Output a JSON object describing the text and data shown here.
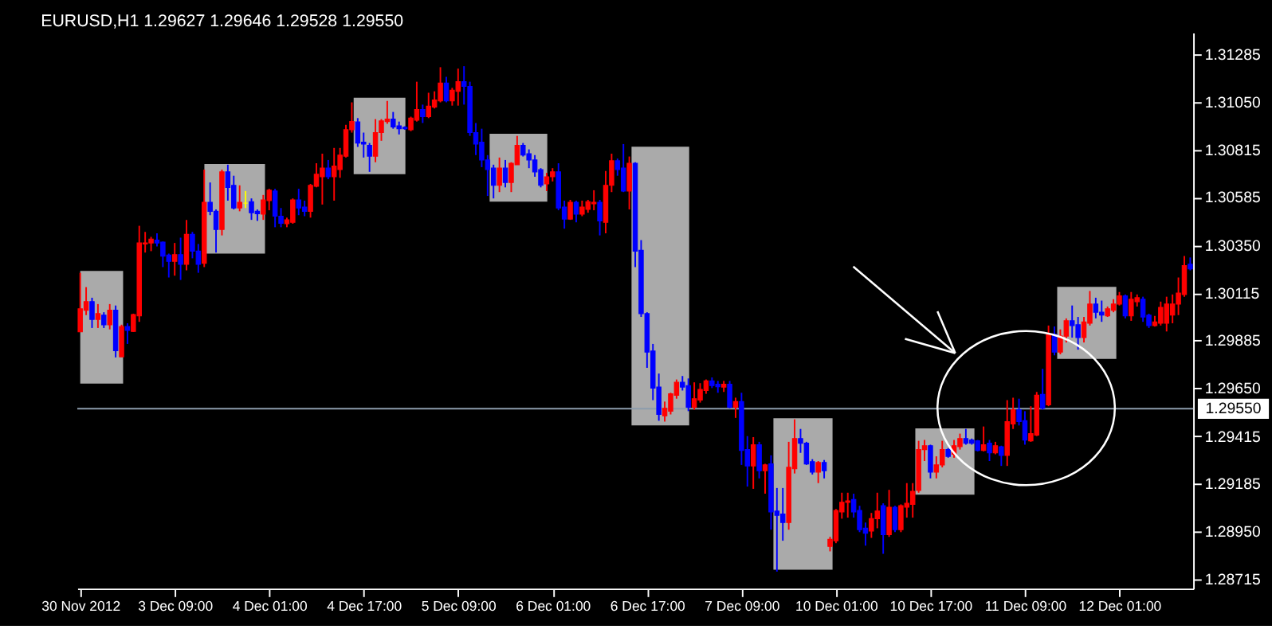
{
  "chart_data": {
    "type": "candlestick",
    "title": "EURUSD,H1  1.29627 1.29646 1.29528 1.29550",
    "categories": [
      "30 Nov 2012",
      null,
      null,
      null,
      null,
      null,
      null,
      null,
      null,
      null,
      null,
      null,
      null,
      null,
      null,
      null,
      "3 Dec 09:00",
      null,
      null,
      null,
      null,
      null,
      null,
      null,
      null,
      null,
      null,
      null,
      null,
      null,
      null,
      null,
      "4 Dec 01:00",
      null,
      null,
      null,
      null,
      null,
      null,
      null,
      null,
      null,
      null,
      null,
      null,
      null,
      null,
      null,
      "4 Dec 17:00",
      null,
      null,
      null,
      null,
      null,
      null,
      null,
      null,
      null,
      null,
      null,
      null,
      null,
      null,
      null,
      "5 Dec 09:00",
      null,
      null,
      null,
      null,
      null,
      null,
      null,
      null,
      null,
      null,
      null,
      null,
      null,
      null,
      null,
      "6 Dec 01:00",
      null,
      null,
      null,
      null,
      null,
      null,
      null,
      null,
      null,
      null,
      null,
      null,
      null,
      null,
      null,
      "6 Dec 17:00",
      null,
      null,
      null,
      null,
      null,
      null,
      null,
      null,
      null,
      null,
      null,
      null,
      null,
      null,
      null,
      "7 Dec 09:00",
      null,
      null,
      null,
      null,
      null,
      null,
      null,
      null,
      null,
      null,
      null,
      null,
      null,
      null,
      null,
      "10 Dec 01:00",
      null,
      null,
      null,
      null,
      null,
      null,
      null,
      null,
      null,
      null,
      null,
      null,
      null,
      null,
      null,
      "10 Dec 17:00",
      null,
      null,
      null,
      null,
      null,
      null,
      null,
      null,
      null,
      null,
      null,
      null,
      null,
      null,
      null,
      "11 Dec 09:00",
      null,
      null,
      null,
      null,
      null,
      null,
      null,
      null,
      null,
      null,
      null,
      null,
      null,
      null,
      null,
      "12 Dec 01:00",
      null,
      null,
      null,
      null,
      null,
      null,
      null,
      null,
      null,
      null,
      null,
      null
    ],
    "ohlc": [
      [
        1.29926,
        1.30215,
        1.29926,
        1.30039
      ],
      [
        1.30032,
        1.30145,
        1.30008,
        1.30074
      ],
      [
        1.30074,
        1.30093,
        1.29945,
        1.29987
      ],
      [
        1.29987,
        1.30062,
        1.29945,
        1.30015
      ],
      [
        1.30008,
        1.30022,
        1.29945,
        1.29961
      ],
      [
        1.29961,
        1.30062,
        1.29938,
        1.30032
      ],
      [
        1.30032,
        1.30055,
        1.29801,
        1.29834
      ],
      [
        1.29804,
        1.29961,
        1.29804,
        1.29952
      ],
      [
        1.29952,
        1.29968,
        1.29867,
        1.29933
      ],
      [
        1.29928,
        1.30015,
        1.29926,
        1.30011
      ],
      [
        1.30004,
        1.30445,
        1.29975,
        1.30361
      ],
      [
        1.30356,
        1.30415,
        1.30314,
        1.30361
      ],
      [
        1.30361,
        1.30391,
        1.30321,
        1.3038
      ],
      [
        1.30375,
        1.30408,
        1.30344,
        1.30361
      ],
      [
        1.30365,
        1.30368,
        1.30243,
        1.30297
      ],
      [
        1.30302,
        1.30309,
        1.30192,
        1.30271
      ],
      [
        1.30271,
        1.30361,
        1.30201,
        1.30304
      ],
      [
        1.30304,
        1.30387,
        1.3018,
        1.30257
      ],
      [
        1.30257,
        1.30474,
        1.30227,
        1.30403
      ],
      [
        1.30403,
        1.30415,
        1.30286,
        1.30321
      ],
      [
        1.30321,
        1.30356,
        1.30215,
        1.30257
      ],
      [
        1.30262,
        1.3072,
        1.30243,
        1.3056
      ],
      [
        1.3056,
        1.30657,
        1.30497,
        1.30516
      ],
      [
        1.30516,
        1.30525,
        1.30314,
        1.30427
      ],
      [
        1.30427,
        1.3072,
        1.30398,
        1.30709
      ],
      [
        1.30709,
        1.30744,
        1.30568,
        1.30633
      ],
      [
        1.30643,
        1.3069,
        1.30525,
        1.30532
      ],
      [
        1.30532,
        1.30643,
        1.30516,
        1.3056
      ],
      [
        1.30556,
        1.30615,
        1.30532,
        1.30556
      ],
      [
        1.30563,
        1.30579,
        1.30474,
        1.30509
      ],
      [
        1.30516,
        1.30525,
        1.30469,
        1.30504
      ],
      [
        1.30502,
        1.30596,
        1.30474,
        1.30572
      ],
      [
        1.30568,
        1.30626,
        1.30521,
        1.30619
      ],
      [
        1.30615,
        1.30626,
        1.30438,
        1.30492
      ],
      [
        1.30492,
        1.30532,
        1.30438,
        1.30457
      ],
      [
        1.30455,
        1.30485,
        1.30438,
        1.30474
      ],
      [
        1.30462,
        1.30579,
        1.30455,
        1.30572
      ],
      [
        1.30572,
        1.30626,
        1.30497,
        1.30532
      ],
      [
        1.30537,
        1.30568,
        1.30492,
        1.30516
      ],
      [
        1.30516,
        1.3065,
        1.30485,
        1.30643
      ],
      [
        1.30638,
        1.30751,
        1.30633,
        1.30697
      ],
      [
        1.30685,
        1.30798,
        1.30549,
        1.30727
      ],
      [
        1.30727,
        1.30767,
        1.30673,
        1.30685
      ],
      [
        1.30685,
        1.30826,
        1.30568,
        1.30737
      ],
      [
        1.3072,
        1.30826,
        1.3068,
        1.30791
      ],
      [
        1.30786,
        1.30939,
        1.30779,
        1.30915
      ],
      [
        1.30915,
        1.31049,
        1.30901,
        1.30955
      ],
      [
        1.30953,
        1.30972,
        1.30831,
        1.3085
      ],
      [
        1.30854,
        1.30901,
        1.30779,
        1.30845
      ],
      [
        1.30838,
        1.3085,
        1.30709,
        1.30786
      ],
      [
        1.30786,
        1.30967,
        1.30756,
        1.30901
      ],
      [
        1.30901,
        1.30967,
        1.30861,
        1.30958
      ],
      [
        1.30955,
        1.31056,
        1.30944,
        1.30967
      ],
      [
        1.30967,
        1.31002,
        1.3092,
        1.30929
      ],
      [
        1.30934,
        1.30955,
        1.30892,
        1.3092
      ],
      [
        1.30927,
        1.30932,
        1.30915,
        1.3092
      ],
      [
        1.30915,
        1.30979,
        1.30908,
        1.30972
      ],
      [
        1.30962,
        1.3115,
        1.30955,
        1.31014
      ],
      [
        1.31014,
        1.31038,
        1.30948,
        1.30979
      ],
      [
        1.30979,
        1.31096,
        1.30972,
        1.3103
      ],
      [
        1.31026,
        1.31103,
        1.31019,
        1.31061
      ],
      [
        1.31056,
        1.31221,
        1.31049,
        1.31143
      ],
      [
        1.31143,
        1.31174,
        1.31049,
        1.31056
      ],
      [
        1.31056,
        1.3112,
        1.31033,
        1.31108
      ],
      [
        1.31103,
        1.31214,
        1.31033,
        1.3115
      ],
      [
        1.3115,
        1.31226,
        1.31038,
        1.31127
      ],
      [
        1.31127,
        1.3115,
        1.30885,
        1.30901
      ],
      [
        1.30901,
        1.30948,
        1.30791,
        1.30845
      ],
      [
        1.30854,
        1.3092,
        1.30732,
        1.30767
      ],
      [
        1.30767,
        1.30791,
        1.30591,
        1.3072
      ],
      [
        1.30727,
        1.30744,
        1.30579,
        1.30643
      ],
      [
        1.30643,
        1.30779,
        1.3061,
        1.30727
      ],
      [
        1.30727,
        1.30767,
        1.30633,
        1.30657
      ],
      [
        1.30657,
        1.30756,
        1.3061,
        1.30751
      ],
      [
        1.30744,
        1.30885,
        1.30744,
        1.30838
      ],
      [
        1.30838,
        1.3085,
        1.30784,
        1.30791
      ],
      [
        1.30798,
        1.30819,
        1.30727,
        1.30767
      ],
      [
        1.30767,
        1.30791,
        1.30685,
        1.30709
      ],
      [
        1.3072,
        1.30727,
        1.30633,
        1.30643
      ],
      [
        1.3065,
        1.30704,
        1.30615,
        1.30685
      ],
      [
        1.30685,
        1.30727,
        1.30662,
        1.30709
      ],
      [
        1.30709,
        1.30751,
        1.30521,
        1.30532
      ],
      [
        1.30537,
        1.30568,
        1.30431,
        1.30478
      ],
      [
        1.30478,
        1.30572,
        1.30474,
        1.3056
      ],
      [
        1.3056,
        1.30568,
        1.30462,
        1.30502
      ],
      [
        1.30502,
        1.30568,
        1.30492,
        1.30537
      ],
      [
        1.30525,
        1.30572,
        1.30509,
        1.30563
      ],
      [
        1.30553,
        1.30619,
        1.30521,
        1.3056
      ],
      [
        1.3056,
        1.30572,
        1.30398,
        1.30469
      ],
      [
        1.30462,
        1.30713,
        1.30408,
        1.30643
      ],
      [
        1.30643,
        1.30798,
        1.3061,
        1.30763
      ],
      [
        1.30763,
        1.30774,
        1.3069,
        1.3072
      ],
      [
        1.30727,
        1.30845,
        1.3061,
        1.30615
      ],
      [
        1.30615,
        1.30784,
        1.30525,
        1.30751
      ],
      [
        1.30751,
        1.30756,
        1.30243,
        1.30321
      ],
      [
        1.30325,
        1.30375,
        1.29999,
        1.30015
      ],
      [
        1.30015,
        1.30022,
        1.2975,
        1.29827
      ],
      [
        1.29832,
        1.29867,
        1.29592,
        1.29651
      ],
      [
        1.29656,
        1.29722,
        1.29491,
        1.29522
      ],
      [
        1.29515,
        1.29585,
        1.29487,
        1.29552
      ],
      [
        1.29538,
        1.29628,
        1.29522,
        1.29623
      ],
      [
        1.29616,
        1.29693,
        1.29599,
        1.29679
      ],
      [
        1.29679,
        1.2971,
        1.29639,
        1.29656
      ],
      [
        1.29663,
        1.29698,
        1.29538,
        1.29557
      ],
      [
        1.29557,
        1.29679,
        1.29545,
        1.29599
      ],
      [
        1.29592,
        1.29675,
        1.2958,
        1.29644
      ],
      [
        1.29639,
        1.29693,
        1.29623,
        1.29686
      ],
      [
        1.29686,
        1.29703,
        1.29651,
        1.29663
      ],
      [
        1.2967,
        1.29686,
        1.29628,
        1.29658
      ],
      [
        1.29656,
        1.29686,
        1.29632,
        1.2967
      ],
      [
        1.2967,
        1.29686,
        1.29552,
        1.29557
      ],
      [
        1.29557,
        1.29604,
        1.29505,
        1.29585
      ],
      [
        1.29585,
        1.29628,
        1.29275,
        1.29346
      ],
      [
        1.2935,
        1.29416,
        1.29169,
        1.2927
      ],
      [
        1.2927,
        1.29411,
        1.29158,
        1.29374
      ],
      [
        1.29374,
        1.29388,
        1.29209,
        1.29247
      ],
      [
        1.29247,
        1.2928,
        1.29134,
        1.29275
      ],
      [
        1.2928,
        1.29322,
        1.28958,
        1.29045
      ],
      [
        1.29049,
        1.29162,
        1.28753,
        1.29028
      ],
      [
        1.29035,
        1.29162,
        1.28904,
        1.28993
      ],
      [
        1.28993,
        1.29388,
        1.28958,
        1.29263
      ],
      [
        1.29256,
        1.29498,
        1.29233,
        1.29404
      ],
      [
        1.29404,
        1.29451,
        1.29334,
        1.29381
      ],
      [
        1.29381,
        1.29388,
        1.29275,
        1.2928
      ],
      [
        1.29291,
        1.29303,
        1.29228,
        1.2924
      ],
      [
        1.2924,
        1.29294,
        1.29186,
        1.29287
      ],
      [
        1.29287,
        1.29299,
        1.29209,
        1.29247
      ],
      [
        1.28876,
        1.28923,
        1.28852,
        1.28911
      ],
      [
        1.28904,
        1.29059,
        1.28892,
        1.29052
      ],
      [
        1.29045,
        1.29139,
        1.29012,
        1.29092
      ],
      [
        1.29092,
        1.29139,
        1.29017,
        1.29099
      ],
      [
        1.29106,
        1.29134,
        1.29017,
        1.29045
      ],
      [
        1.29052,
        1.29075,
        1.28946,
        1.28958
      ],
      [
        1.28965,
        1.28993,
        1.2888,
        1.28941
      ],
      [
        1.28951,
        1.2904,
        1.28918,
        1.29012
      ],
      [
        1.29012,
        1.29139,
        1.28965,
        1.29049
      ],
      [
        1.29075,
        1.29087,
        1.2884,
        1.28934
      ],
      [
        1.28934,
        1.29153,
        1.28923,
        1.29068
      ],
      [
        1.29068,
        1.29075,
        1.28946,
        1.28958
      ],
      [
        1.28958,
        1.29082,
        1.28946,
        1.29075
      ],
      [
        1.29068,
        1.29186,
        1.29017,
        1.29087
      ],
      [
        1.29082,
        1.29186,
        1.29017,
        1.29146
      ],
      [
        1.2915,
        1.29393,
        1.29139,
        1.2935
      ],
      [
        1.2935,
        1.29397,
        1.29294,
        1.29369
      ],
      [
        1.29369,
        1.29374,
        1.29209,
        1.2924
      ],
      [
        1.2924,
        1.29317,
        1.29209,
        1.29275
      ],
      [
        1.29275,
        1.29393,
        1.29263,
        1.2935
      ],
      [
        1.2935,
        1.29357,
        1.2931,
        1.29317
      ],
      [
        1.29327,
        1.29397,
        1.2931,
        1.29369
      ],
      [
        1.29364,
        1.29428,
        1.2935,
        1.29404
      ],
      [
        1.29404,
        1.29451,
        1.29374,
        1.29381
      ],
      [
        1.29397,
        1.29404,
        1.29374,
        1.29381
      ],
      [
        1.29393,
        1.29397,
        1.29341,
        1.29346
      ],
      [
        1.29346,
        1.29463,
        1.29341,
        1.29374
      ],
      [
        1.29381,
        1.29397,
        1.29294,
        1.29334
      ],
      [
        1.29334,
        1.29388,
        1.29327,
        1.29369
      ],
      [
        1.29364,
        1.29369,
        1.2927,
        1.29322
      ],
      [
        1.29322,
        1.29592,
        1.2927,
        1.29487
      ],
      [
        1.29475,
        1.29604,
        1.29451,
        1.29545
      ],
      [
        1.29545,
        1.29599,
        1.29468,
        1.29487
      ],
      [
        1.29491,
        1.29538,
        1.29374,
        1.29397
      ],
      [
        1.29393,
        1.29562,
        1.29388,
        1.29428
      ],
      [
        1.29421,
        1.29632,
        1.29416,
        1.29616
      ],
      [
        1.2962,
        1.29745,
        1.29545,
        1.29552
      ],
      [
        1.29569,
        1.29957,
        1.29562,
        1.29914
      ],
      [
        1.29914,
        1.29952,
        1.29811,
        1.29827
      ],
      [
        1.29827,
        1.29938,
        1.29816,
        1.29905
      ],
      [
        1.29905,
        1.29992,
        1.29874,
        1.2998
      ],
      [
        1.2998,
        1.30055,
        1.29898,
        1.29957
      ],
      [
        1.29961,
        1.29999,
        1.29839,
        1.29898
      ],
      [
        1.29898,
        1.29999,
        1.29874,
        1.29975
      ],
      [
        1.29968,
        1.30126,
        1.29957,
        1.30062
      ],
      [
        1.30062,
        1.30093,
        1.29992,
        1.30022
      ],
      [
        1.30022,
        1.30079,
        1.29975,
        1.30008
      ],
      [
        1.30004,
        1.3005,
        1.29999,
        1.30039
      ],
      [
        1.30032,
        1.30086,
        1.30022,
        1.30062
      ],
      [
        1.30062,
        1.30121,
        1.30055,
        1.30102
      ],
      [
        1.30102,
        1.30109,
        1.29992,
        1.30004
      ],
      [
        1.30004,
        1.30121,
        1.2998,
        1.30086
      ],
      [
        1.30074,
        1.30109,
        1.3005,
        1.30093
      ],
      [
        1.30086,
        1.30098,
        1.29975,
        1.29999
      ],
      [
        1.30008,
        1.30015,
        1.29945,
        1.29957
      ],
      [
        1.29957,
        1.30004,
        1.29952,
        1.29975
      ],
      [
        1.29968,
        1.30074,
        1.29957,
        1.30046
      ],
      [
        1.29968,
        1.30098,
        1.29928,
        1.30062
      ],
      [
        1.30008,
        1.30109,
        1.29968,
        1.30062
      ],
      [
        1.30062,
        1.30192,
        1.30008,
        1.30116
      ],
      [
        1.30109,
        1.30297,
        1.30098,
        1.3025
      ],
      [
        1.30257,
        1.3029,
        1.30227,
        1.30234
      ]
    ],
    "colors": [
      "#ff0000",
      "#ff0000",
      "#0000ff",
      "#ff0000",
      "#0000ff",
      "#ff0000",
      "#0000ff",
      "#ff0000",
      "#0000ff",
      "#ff0000",
      "#ff0000",
      "#ff0000",
      "#ff0000",
      "#0000ff",
      "#0000ff",
      "#0000ff",
      "#ff0000",
      "#0000ff",
      "#ff0000",
      "#0000ff",
      "#0000ff",
      "#ff0000",
      "#0000ff",
      "#0000ff",
      "#ff0000",
      "#0000ff",
      "#0000ff",
      "#ff0000",
      "#ffff00",
      "#0000ff",
      "#0000ff",
      "#ff0000",
      "#ff0000",
      "#0000ff",
      "#0000ff",
      "#ff0000",
      "#ff0000",
      "#0000ff",
      "#0000ff",
      "#ff0000",
      "#ff0000",
      "#ff0000",
      "#0000ff",
      "#ff0000",
      "#ff0000",
      "#ff0000",
      "#ff0000",
      "#0000ff",
      "#0000ff",
      "#0000ff",
      "#ff0000",
      "#ff0000",
      "#ff0000",
      "#0000ff",
      "#0000ff",
      "#0000ff",
      "#ff0000",
      "#ff0000",
      "#0000ff",
      "#ff0000",
      "#ff0000",
      "#ff0000",
      "#0000ff",
      "#ff0000",
      "#ff0000",
      "#0000ff",
      "#0000ff",
      "#0000ff",
      "#0000ff",
      "#0000ff",
      "#0000ff",
      "#ff0000",
      "#0000ff",
      "#ff0000",
      "#ff0000",
      "#0000ff",
      "#0000ff",
      "#0000ff",
      "#0000ff",
      "#ff0000",
      "#ff0000",
      "#0000ff",
      "#0000ff",
      "#ff0000",
      "#0000ff",
      "#ff0000",
      "#ff0000",
      "#ff0000",
      "#0000ff",
      "#ff0000",
      "#ff0000",
      "#0000ff",
      "#0000ff",
      "#ff0000",
      "#0000ff",
      "#0000ff",
      "#0000ff",
      "#0000ff",
      "#0000ff",
      "#ff0000",
      "#ff0000",
      "#ff0000",
      "#0000ff",
      "#0000ff",
      "#ff0000",
      "#ff0000",
      "#ff0000",
      "#0000ff",
      "#0000ff",
      "#ff0000",
      "#0000ff",
      "#ff0000",
      "#0000ff",
      "#0000ff",
      "#ff0000",
      "#0000ff",
      "#ff0000",
      "#0000ff",
      "#0000ff",
      "#0000ff",
      "#ff0000",
      "#ff0000",
      "#0000ff",
      "#0000ff",
      "#0000ff",
      "#ff0000",
      "#0000ff",
      "#ff0000",
      "#ff0000",
      "#ff0000",
      "#ff0000",
      "#0000ff",
      "#0000ff",
      "#0000ff",
      "#ff0000",
      "#ff0000",
      "#0000ff",
      "#ff0000",
      "#0000ff",
      "#ff0000",
      "#ff0000",
      "#ff0000",
      "#ff0000",
      "#ff0000",
      "#0000ff",
      "#ff0000",
      "#ff0000",
      "#0000ff",
      "#ff0000",
      "#ff0000",
      "#0000ff",
      "#0000ff",
      "#0000ff",
      "#ff0000",
      "#0000ff",
      "#ff0000",
      "#0000ff",
      "#ff0000",
      "#ff0000",
      "#0000ff",
      "#0000ff",
      "#ff0000",
      "#ff0000",
      "#0000ff",
      "#ff0000",
      "#0000ff",
      "#ff0000",
      "#ff0000",
      "#0000ff",
      "#0000ff",
      "#ff0000",
      "#ff0000",
      "#0000ff",
      "#0000ff",
      "#ff0000",
      "#ff0000",
      "#ff0000",
      "#0000ff",
      "#ff0000",
      "#ff0000",
      "#0000ff",
      "#0000ff",
      "#ff0000",
      "#ff0000",
      "#ff0000",
      "#ff0000",
      "#ff0000",
      "#ff0000",
      "#0000ff"
    ],
    "ylim": [
      1.2867,
      1.3139
    ],
    "yticks": [
      1.28715,
      {
        "value": 1.2895,
        "label": "1.28950"
      },
      1.29185,
      1.29415,
      {
        "value": 1.2965,
        "label": "1.29650"
      },
      1.29885,
      1.30115,
      {
        "value": 1.3035,
        "label": "1.30350"
      },
      1.30585,
      1.30815,
      {
        "value": 1.3105,
        "label": "1.31050"
      },
      1.31285
    ],
    "ref_lines": [
      {
        "axis": "y",
        "value": 1.2955,
        "label": "1.29550",
        "color": "#8c9cac"
      }
    ]
  }
}
